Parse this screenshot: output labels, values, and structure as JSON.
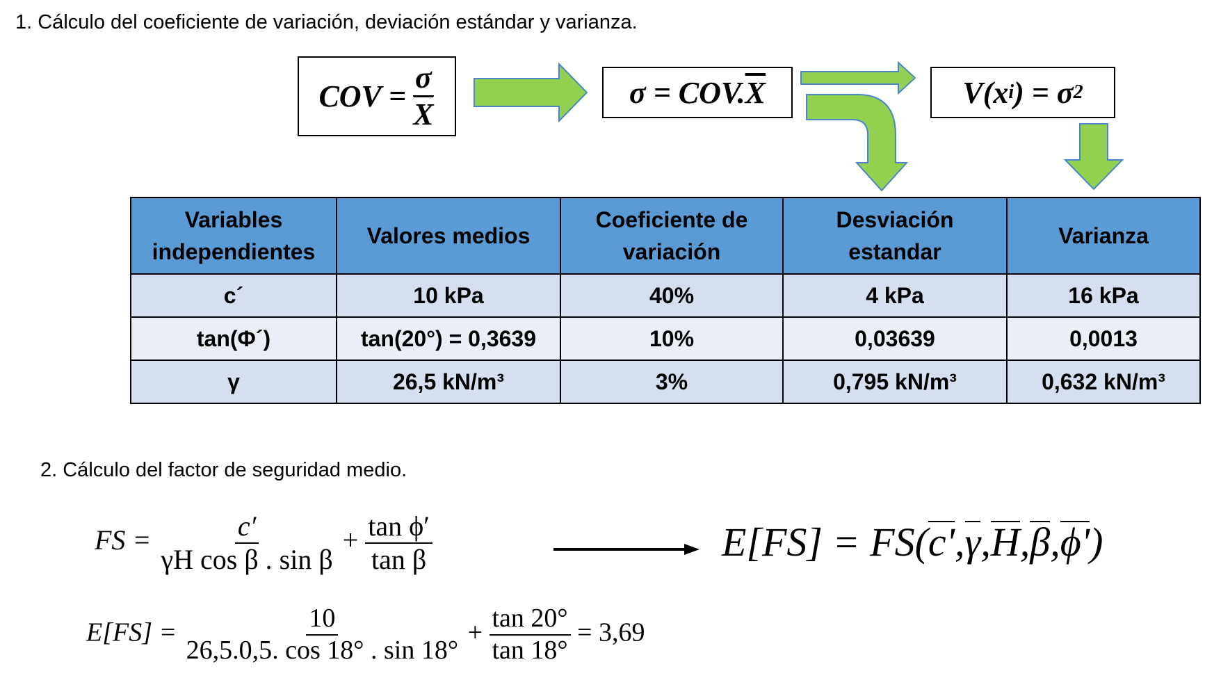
{
  "section1": {
    "heading": "1. Cálculo del coeficiente de variación, deviación estándar y varianza."
  },
  "formulas": {
    "cov_lhs": "COV =",
    "cov_num": "σ",
    "cov_den": "X",
    "sigma_lhs": "σ = COV.",
    "sigma_rhs": "X",
    "var_lhs": "V(x",
    "var_sub": "i",
    "var_mid": ") = σ",
    "var_sup": "2"
  },
  "colors": {
    "arrow_fill": "#92d050",
    "arrow_stroke": "#4a86c8",
    "header_bg": "#5b9bd5",
    "row_bg": "#d6dff0",
    "row_alt_bg": "#eaeff7"
  },
  "table": {
    "headers": [
      {
        "l1": "Variables",
        "l2": "independientes"
      },
      {
        "l1": "Valores medios",
        "l2": ""
      },
      {
        "l1": "Coeficiente de",
        "l2": "variación"
      },
      {
        "l1": "Desviación",
        "l2": "estandar"
      },
      {
        "l1": "Varianza",
        "l2": ""
      }
    ],
    "rows": [
      [
        "c´",
        "10 kPa",
        "40%",
        "4 kPa",
        "16 kPa"
      ],
      [
        "tan(Φ´)",
        "tan(20°) = 0,3639",
        "10%",
        "0,03639",
        "0,0013"
      ],
      [
        "γ",
        "26,5 kN/m³",
        "3%",
        "0,795 kN/m³",
        "0,632 kN/m³"
      ]
    ]
  },
  "section2": {
    "heading": "2. Cálculo del factor de seguridad medio."
  },
  "fs_formula": {
    "lhs": "FS =",
    "frac1_num": "c′",
    "frac1_den": "γH cos β . sin β",
    "plus": "+",
    "frac2_num": "tan ϕ′",
    "frac2_den": "tan β"
  },
  "efs_formula": {
    "lhs": "E[FS] = FS(",
    "args": [
      "c'",
      "γ",
      "H",
      "β",
      "ϕ'"
    ],
    "close": ")"
  },
  "efs_numeric": {
    "lhs": "E[FS] =",
    "frac1_num": "10",
    "frac1_den": "26,5.0,5. cos 18° . sin 18°",
    "plus": "+",
    "frac2_num": "tan 20°",
    "frac2_den": "tan 18°",
    "result": "= 3,69"
  }
}
